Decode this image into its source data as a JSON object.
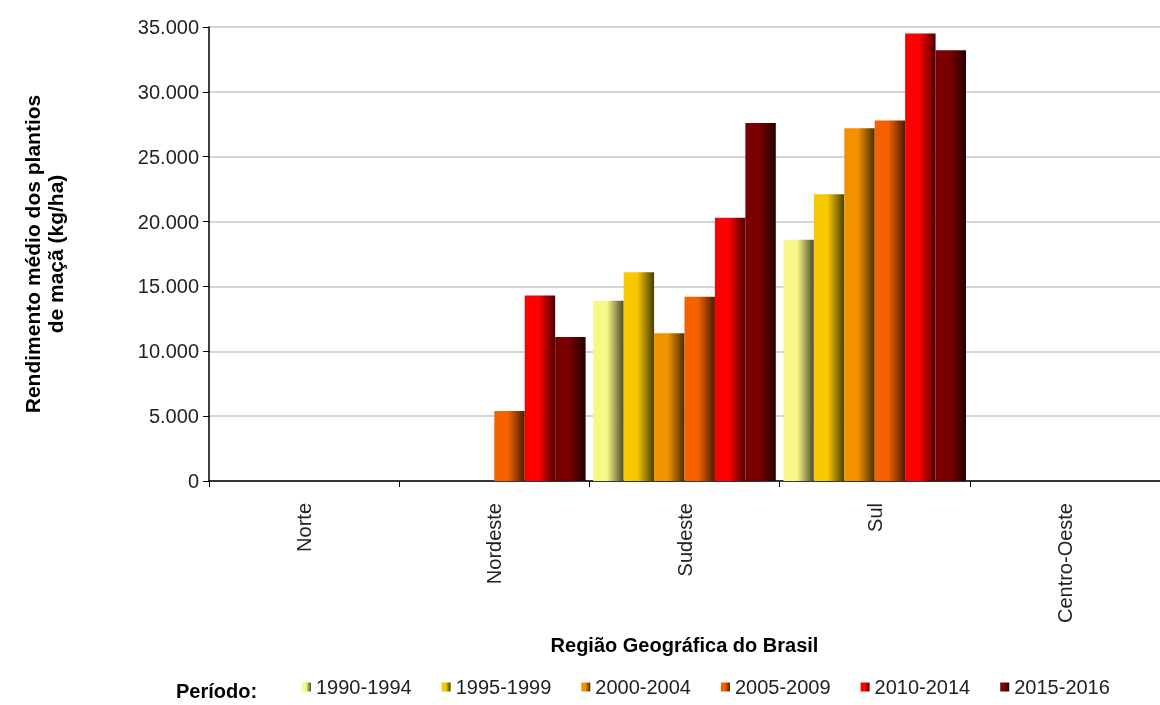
{
  "chart_data": {
    "type": "bar",
    "xlabel": "Região Geográfica do Brasil",
    "ylabel": "Rendimento médio dos plantios de maçã (kg/ha)",
    "legend_title": "Período:",
    "categories": [
      "Norte",
      "Nordeste",
      "Sudeste",
      "Sul",
      "Centro-Oeste"
    ],
    "series": [
      {
        "name": "1990-1994",
        "color": "#f8f888",
        "values": [
          null,
          null,
          13900,
          18600,
          null
        ]
      },
      {
        "name": "1995-1999",
        "color": "#f8c800",
        "values": [
          null,
          null,
          16100,
          22100,
          null
        ]
      },
      {
        "name": "2000-2004",
        "color": "#f39200",
        "values": [
          null,
          null,
          11400,
          27200,
          null
        ]
      },
      {
        "name": "2005-2009",
        "color": "#f56000",
        "values": [
          null,
          5400,
          14200,
          27800,
          null
        ]
      },
      {
        "name": "2010-2014",
        "color": "#ff0000",
        "values": [
          null,
          14300,
          20300,
          34500,
          null
        ]
      },
      {
        "name": "2015-2016",
        "color": "#7a0000",
        "values": [
          null,
          11100,
          27600,
          33200,
          null
        ]
      }
    ],
    "ylim": [
      0,
      35000
    ],
    "yticks": [
      0,
      {
        "value": 5000,
        "label": "5.000"
      },
      {
        "value": 10000,
        "label": "10.000"
      },
      {
        "value": 15000,
        "label": "15.000"
      },
      {
        "value": 20000,
        "label": "20.000"
      },
      {
        "value": 25000,
        "label": "25.000"
      },
      {
        "value": 30000,
        "label": "30.000"
      },
      {
        "value": 35000,
        "label": "35.000"
      }
    ],
    "grid": "y",
    "legend": "bottom"
  }
}
